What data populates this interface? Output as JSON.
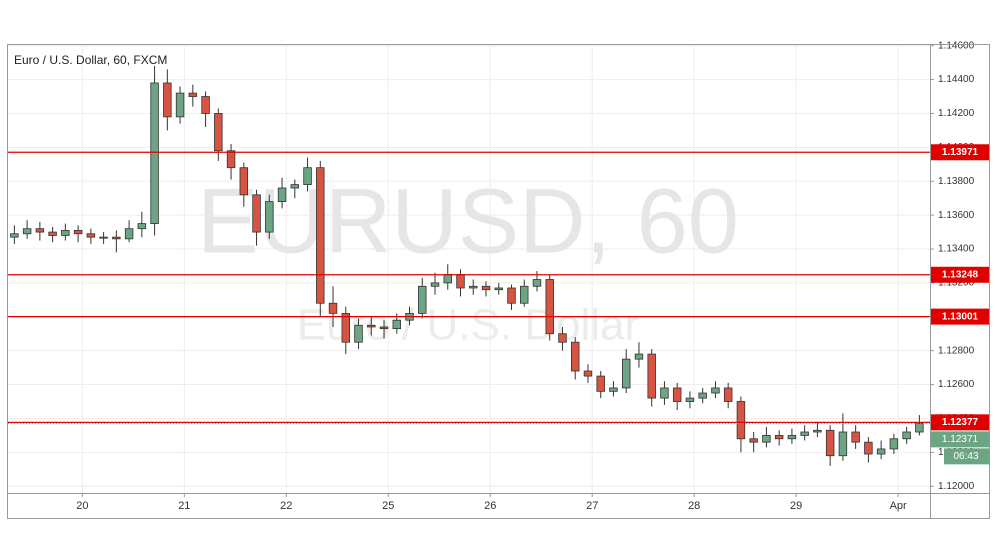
{
  "chart_data": {
    "type": "candlestick",
    "title": "Euro / U.S. Dollar, 60, FXCM",
    "watermark": "EURUSD, 60",
    "watermark_subtitle": "Euro / U.S. Dollar",
    "up_color": "#6ba583",
    "down_color": "#d75442",
    "level_color": "#e00000",
    "last_color": "#6ba583",
    "grid": true,
    "x": [
      0,
      3,
      6,
      9,
      12,
      15,
      18,
      21,
      24,
      27,
      30,
      33,
      36,
      39,
      42,
      45,
      48,
      51,
      54,
      57,
      60,
      63,
      66,
      69,
      72,
      75,
      78,
      81,
      84,
      87,
      90,
      93,
      96,
      99,
      102,
      105,
      108,
      111,
      114,
      117,
      120,
      123,
      126,
      129,
      132,
      135,
      138,
      141,
      144,
      147,
      150,
      153,
      156,
      159,
      162,
      165,
      168,
      171,
      174,
      177,
      180,
      183,
      186,
      189,
      192,
      195,
      198,
      201,
      204,
      207,
      210,
      213
    ],
    "open": [
      1.1347,
      1.1349,
      1.1352,
      1.135,
      1.1348,
      1.1351,
      1.1349,
      1.1347,
      1.1347,
      1.1346,
      1.1352,
      1.1355,
      1.1438,
      1.1418,
      1.1432,
      1.143,
      1.142,
      1.1398,
      1.1388,
      1.1372,
      1.135,
      1.1368,
      1.1376,
      1.1378,
      1.1388,
      1.1308,
      1.1302,
      1.1285,
      1.1295,
      1.1294,
      1.1293,
      1.1298,
      1.1302,
      1.1318,
      1.132,
      1.1325,
      1.1317,
      1.1318,
      1.1316,
      1.1317,
      1.1308,
      1.1318,
      1.1322,
      1.129,
      1.1285,
      1.1268,
      1.1265,
      1.1256,
      1.1258,
      1.1275,
      1.1278,
      1.1252,
      1.1258,
      1.125,
      1.1252,
      1.1255,
      1.1258,
      1.125,
      1.1228,
      1.1226,
      1.123,
      1.1228,
      1.123,
      1.1232,
      1.1233,
      1.1218,
      1.1232,
      1.1226,
      1.1219,
      1.1222,
      1.1228,
      1.1232
    ],
    "high": [
      1.1354,
      1.1357,
      1.1356,
      1.1353,
      1.1355,
      1.1354,
      1.1352,
      1.135,
      1.1351,
      1.1357,
      1.1362,
      1.1448,
      1.1446,
      1.1436,
      1.1437,
      1.1433,
      1.1423,
      1.1402,
      1.1391,
      1.1375,
      1.1372,
      1.1382,
      1.1381,
      1.1394,
      1.1392,
      1.1318,
      1.1306,
      1.1299,
      1.13,
      1.1298,
      1.1302,
      1.1306,
      1.1323,
      1.1326,
      1.1331,
      1.1328,
      1.1322,
      1.1321,
      1.132,
      1.1319,
      1.1322,
      1.1327,
      1.1325,
      1.1294,
      1.1288,
      1.1272,
      1.1268,
      1.1262,
      1.1281,
      1.1285,
      1.1281,
      1.1262,
      1.1261,
      1.1256,
      1.1258,
      1.1262,
      1.1261,
      1.1253,
      1.1232,
      1.1235,
      1.1233,
      1.1234,
      1.1236,
      1.1238,
      1.1236,
      1.1243,
      1.1236,
      1.1229,
      1.1227,
      1.1231,
      1.1235,
      1.1242
    ],
    "low": [
      1.1343,
      1.1346,
      1.1345,
      1.1344,
      1.1345,
      1.1344,
      1.1343,
      1.1343,
      1.1338,
      1.1344,
      1.1347,
      1.1348,
      1.141,
      1.1414,
      1.1424,
      1.1412,
      1.1392,
      1.1381,
      1.1365,
      1.1342,
      1.1346,
      1.1364,
      1.137,
      1.1374,
      1.13,
      1.1294,
      1.1278,
      1.1281,
      1.1289,
      1.1287,
      1.129,
      1.1295,
      1.1299,
      1.1313,
      1.1316,
      1.1312,
      1.1313,
      1.1312,
      1.1313,
      1.1304,
      1.1306,
      1.1315,
      1.1286,
      1.128,
      1.1263,
      1.1261,
      1.1252,
      1.1253,
      1.1255,
      1.127,
      1.1247,
      1.1248,
      1.1245,
      1.1246,
      1.1249,
      1.1252,
      1.1246,
      1.122,
      1.122,
      1.1223,
      1.1224,
      1.1225,
      1.1227,
      1.1229,
      1.1212,
      1.1215,
      1.1222,
      1.1214,
      1.1216,
      1.1219,
      1.1225,
      1.123
    ],
    "close": [
      1.1349,
      1.1352,
      1.135,
      1.1348,
      1.1351,
      1.1349,
      1.1347,
      1.1347,
      1.1346,
      1.1352,
      1.1355,
      1.1438,
      1.1418,
      1.1432,
      1.143,
      1.142,
      1.1398,
      1.1388,
      1.1372,
      1.135,
      1.1368,
      1.1376,
      1.1378,
      1.1388,
      1.1308,
      1.1302,
      1.1285,
      1.1295,
      1.1294,
      1.1293,
      1.1298,
      1.1302,
      1.1318,
      1.132,
      1.1325,
      1.1317,
      1.1318,
      1.1316,
      1.1317,
      1.1308,
      1.1318,
      1.1322,
      1.129,
      1.1285,
      1.1268,
      1.1265,
      1.1256,
      1.1258,
      1.1275,
      1.1278,
      1.1252,
      1.1258,
      1.125,
      1.1252,
      1.1255,
      1.1258,
      1.125,
      1.1228,
      1.1226,
      1.123,
      1.1228,
      1.123,
      1.1232,
      1.1233,
      1.1218,
      1.1232,
      1.1226,
      1.1219,
      1.1222,
      1.1228,
      1.1232,
      1.1237
    ],
    "xlim": [
      -1.5,
      215.5
    ],
    "xticks": [
      {
        "value": 16,
        "label": "20"
      },
      {
        "value": 40,
        "label": "21"
      },
      {
        "value": 64,
        "label": "22"
      },
      {
        "value": 88,
        "label": "25"
      },
      {
        "value": 112,
        "label": "26"
      },
      {
        "value": 136,
        "label": "27"
      },
      {
        "value": 160,
        "label": "28"
      },
      {
        "value": 184,
        "label": "29"
      },
      {
        "value": 208,
        "label": "Apr"
      }
    ],
    "ylim": [
      1.1196,
      1.1461
    ],
    "yticks": [
      {
        "value": 1.12,
        "label": "1.12000"
      },
      {
        "value": 1.122,
        "label": "1.12200"
      },
      {
        "value": 1.124,
        "label": "1.12400"
      },
      {
        "value": 1.126,
        "label": "1.12600"
      },
      {
        "value": 1.128,
        "label": "1.12800"
      },
      {
        "value": 1.13,
        "label": "1.13000"
      },
      {
        "value": 1.132,
        "label": "1.13200"
      },
      {
        "value": 1.134,
        "label": "1.13400"
      },
      {
        "value": 1.136,
        "label": "1.13600"
      },
      {
        "value": 1.138,
        "label": "1.13800"
      },
      {
        "value": 1.14,
        "label": "1.14000"
      },
      {
        "value": 1.142,
        "label": "1.14200"
      },
      {
        "value": 1.144,
        "label": "1.14400"
      },
      {
        "value": 1.146,
        "label": "1.14600"
      }
    ],
    "levels": [
      1.13971,
      1.13248,
      1.13001,
      1.12377
    ],
    "last_price": 1.12371,
    "countdown": "06:43"
  }
}
